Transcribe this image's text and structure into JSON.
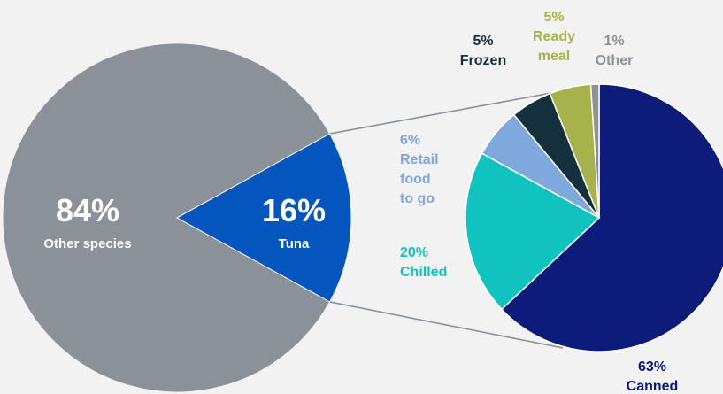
{
  "chart_data": [
    {
      "type": "pie",
      "slices": [
        {
          "label": "Other species",
          "value": 84,
          "value_text": "84%",
          "color": "#8a9198",
          "label_color": "#ffffff"
        },
        {
          "label": "Tuna",
          "value": 16,
          "value_text": "16%",
          "color": "#0555bf",
          "label_color": "#ffffff"
        }
      ]
    },
    {
      "type": "pie",
      "breakdown_of": "Tuna",
      "slices": [
        {
          "label": "Canned",
          "value": 63,
          "value_text": "63%",
          "color": "#0c1c78",
          "label_color": "#0c1c78"
        },
        {
          "label": "Chilled",
          "value": 20,
          "value_text": "20%",
          "color": "#10c3bf",
          "label_color": "#10c3bf"
        },
        {
          "label": "Retail food to go",
          "label_lines": [
            "Retail",
            "food",
            "to go"
          ],
          "value": 6,
          "value_text": "6%",
          "color": "#7fa8dc",
          "label_color": "#7fa8dc"
        },
        {
          "label": "Frozen",
          "value": 5,
          "value_text": "5%",
          "color": "#15303d",
          "label_color": "#15303d"
        },
        {
          "label": "Ready meal",
          "label_lines": [
            "Ready",
            "meal"
          ],
          "value": 5,
          "value_text": "5%",
          "color": "#a6b34a",
          "label_color": "#a6b34a"
        },
        {
          "label": "Other",
          "value": 1,
          "value_text": "1%",
          "color": "#8a9198",
          "label_color": "#8a9198"
        }
      ]
    }
  ],
  "connector_color": "#8a9198"
}
